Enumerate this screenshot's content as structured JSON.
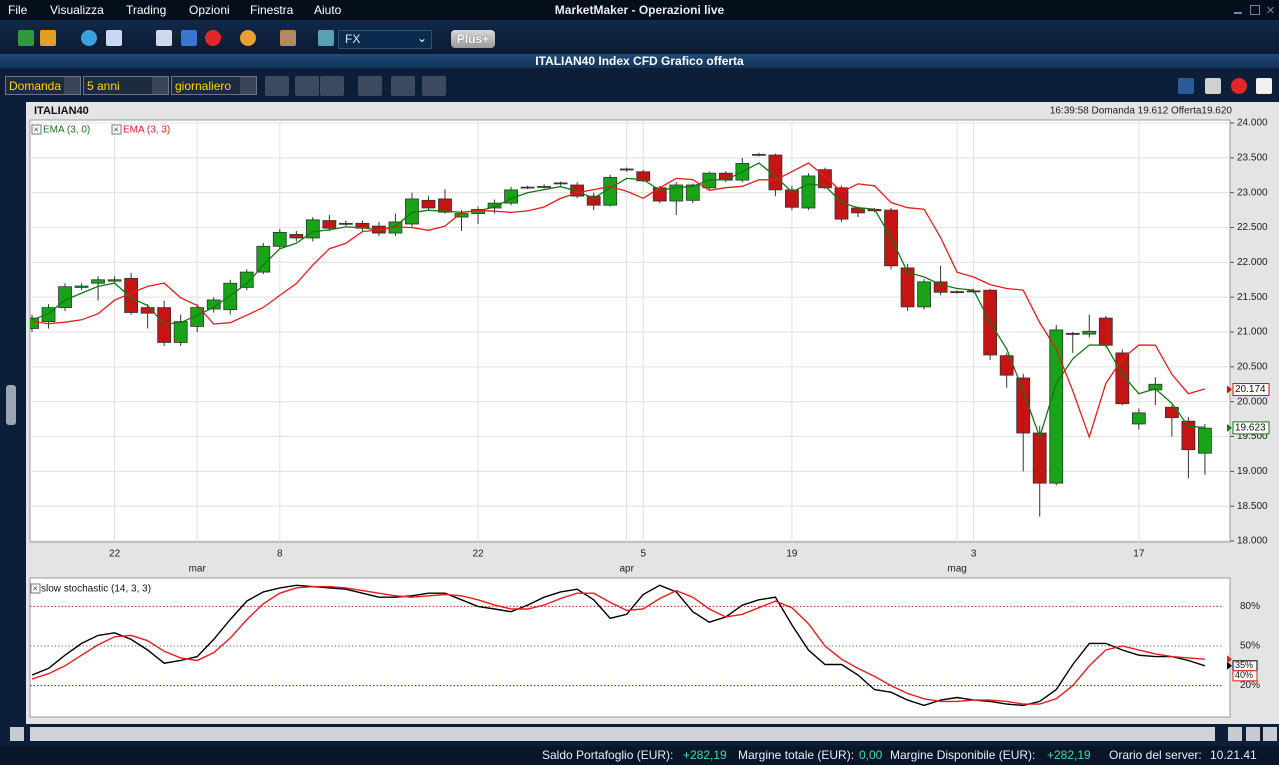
{
  "app": {
    "menu": [
      "File",
      "Visualizza",
      "Trading",
      "Opzioni",
      "Finestra",
      "Aiuto"
    ],
    "title": "MarketMaker - Operazioni live"
  },
  "toolbar": {
    "market": "FX",
    "plus": "Plus+"
  },
  "window": {
    "title": "ITALIAN40 Index CFD Grafico offerta"
  },
  "chart_toolbar": {
    "price": "Domanda",
    "period": "5 anni",
    "interval": "giornaliero"
  },
  "chart_data": [
    {
      "type": "candlestick",
      "title": "ITALIAN40",
      "subtitle": "16:39:58 Domanda 19.612 Offerta19.620",
      "categories": [
        null,
        null,
        null,
        null,
        null,
        "22",
        null,
        null,
        null,
        null,
        null,
        null,
        null,
        null,
        null,
        "8",
        null,
        null,
        null,
        null,
        null,
        null,
        null,
        null,
        null,
        null,
        null,
        "22",
        null,
        null,
        null,
        null,
        null,
        null,
        null,
        null,
        null,
        "5",
        null,
        null,
        null,
        null,
        null,
        null,
        null,
        null,
        "19",
        null,
        null,
        null,
        null,
        null,
        null,
        null,
        null,
        null,
        null,
        "3",
        null,
        null,
        null,
        null,
        null,
        null,
        null,
        null,
        null,
        "17",
        null,
        null,
        null,
        null
      ],
      "months": [
        null,
        null,
        null,
        null,
        null,
        null,
        null,
        null,
        null,
        null,
        "mar",
        null,
        null,
        null,
        null,
        null,
        null,
        null,
        null,
        null,
        null,
        null,
        null,
        null,
        null,
        null,
        null,
        null,
        null,
        null,
        null,
        null,
        null,
        null,
        null,
        null,
        "apr",
        null,
        null,
        null,
        null,
        null,
        null,
        null,
        null,
        null,
        null,
        null,
        null,
        null,
        null,
        null,
        null,
        null,
        null,
        null,
        "mag",
        null,
        null,
        null,
        null,
        null,
        null,
        null,
        null,
        null,
        null,
        null,
        null,
        null,
        null,
        null
      ],
      "open": [
        21050,
        21150,
        21350,
        21640,
        21700,
        21730,
        21770,
        21350,
        21350,
        20850,
        21080,
        21330,
        21320,
        21640,
        21860,
        22230,
        22400,
        22350,
        22600,
        22560,
        22560,
        22520,
        22420,
        22550,
        22890,
        22910,
        22650,
        22700,
        22780,
        22850,
        23070,
        23080,
        23140,
        23110,
        22950,
        22820,
        23330,
        23300,
        23070,
        22880,
        22890,
        23070,
        23280,
        23180,
        23540,
        23540,
        23040,
        22780,
        23330,
        23070,
        22780,
        22760,
        22750,
        21920,
        21360,
        21720,
        21580,
        21590,
        21600,
        20660,
        20340,
        19550,
        18830,
        20980,
        20970,
        21200,
        20700,
        19680,
        20170,
        19920,
        19720,
        19260
      ],
      "high": [
        21250,
        21400,
        21700,
        21700,
        21800,
        21800,
        21850,
        21400,
        21450,
        21250,
        21400,
        21500,
        21750,
        21900,
        22280,
        22480,
        22450,
        22650,
        22680,
        22600,
        22600,
        22580,
        22700,
        23000,
        22950,
        23050,
        22750,
        22800,
        22900,
        23080,
        23100,
        23120,
        23160,
        23150,
        23000,
        23260,
        23360,
        23330,
        23100,
        23150,
        23130,
        23300,
        23310,
        23500,
        23570,
        23560,
        23100,
        23280,
        23360,
        23100,
        22800,
        22780,
        22780,
        21980,
        21760,
        21950,
        21600,
        21620,
        21620,
        20700,
        20400,
        19650,
        21100,
        21000,
        21250,
        21230,
        20750,
        19900,
        20350,
        19950,
        19780,
        19680
      ],
      "low": [
        21000,
        21050,
        21300,
        21600,
        21450,
        21700,
        21250,
        21050,
        20800,
        20800,
        21000,
        21280,
        21250,
        21600,
        21830,
        22200,
        22300,
        22300,
        22450,
        22520,
        22450,
        22380,
        22380,
        22500,
        22750,
        22700,
        22450,
        22550,
        22700,
        22820,
        23050,
        23060,
        23100,
        22920,
        22750,
        22800,
        23300,
        23150,
        22850,
        22680,
        22850,
        23050,
        23150,
        23150,
        23520,
        22950,
        22750,
        22750,
        23050,
        22580,
        22650,
        22720,
        21900,
        21300,
        21320,
        21530,
        21550,
        21560,
        20600,
        20200,
        19000,
        18350,
        18800,
        20700,
        20920,
        20780,
        19950,
        19600,
        19950,
        19500,
        18900,
        18950
      ],
      "close": [
        21200,
        21350,
        21650,
        21660,
        21750,
        21750,
        21280,
        21270,
        20850,
        21150,
        21350,
        21460,
        21700,
        21860,
        22230,
        22430,
        22350,
        22610,
        22490,
        22550,
        22490,
        22420,
        22580,
        22910,
        22780,
        22720,
        22700,
        22760,
        22850,
        23040,
        23080,
        23090,
        23130,
        22950,
        22820,
        23220,
        23340,
        23170,
        22880,
        23110,
        23110,
        23280,
        23180,
        23420,
        23550,
        23040,
        22790,
        23240,
        23070,
        22620,
        22710,
        22740,
        21950,
        21360,
        21720,
        21570,
        21570,
        21580,
        20670,
        20380,
        19550,
        18830,
        21030,
        20970,
        21010,
        20810,
        19970,
        19840,
        20250,
        19770,
        19310,
        19620
      ],
      "up_color": "#18a318",
      "down_color": "#c41414",
      "series": [
        {
          "name": "EMA (3, 0)",
          "color": "#147814",
          "values": [
            21175,
            21263,
            21456,
            21558,
            21654,
            21702,
            21491,
            21381,
            21115,
            21133,
            21241,
            21351,
            21525,
            21693,
            21961,
            22196,
            22273,
            22441,
            22466,
            22508,
            22499,
            22460,
            22520,
            22715,
            22747,
            22734,
            22717,
            22738,
            22794,
            22917,
            22999,
            23044,
            23087,
            23019,
            22919,
            23070,
            23205,
            23187,
            23034,
            23072,
            23091,
            23185,
            23183,
            23301,
            23426,
            23233,
            23011,
            23126,
            23098,
            22859,
            22784,
            22762,
            22356,
            21858,
            21789,
            21680,
            21625,
            21602,
            21136,
            20758,
            20154,
            19492,
            20261,
            20616,
            20813,
            20811,
            20391,
            20115,
            20183,
            19976,
            19643,
            19632
          ]
        },
        {
          "name": "EMA (3, 3)",
          "color": "#e81c1c",
          "values": [
            21150,
            21120,
            21140,
            21175,
            21263,
            21456,
            21558,
            21654,
            21702,
            21491,
            21381,
            21115,
            21133,
            21241,
            21351,
            21525,
            21693,
            21961,
            22196,
            22273,
            22441,
            22466,
            22508,
            22499,
            22460,
            22520,
            22715,
            22747,
            22734,
            22717,
            22738,
            22794,
            22917,
            22999,
            23044,
            23087,
            23019,
            22919,
            23070,
            23205,
            23187,
            23034,
            23072,
            23091,
            23185,
            23183,
            23301,
            23426,
            23233,
            23011,
            23126,
            23098,
            22859,
            22784,
            22762,
            22356,
            21858,
            21789,
            21680,
            21625,
            21602,
            21136,
            20758,
            20154,
            19492,
            20261,
            20616,
            20813,
            20811,
            20391,
            20115,
            20183
          ]
        }
      ],
      "price_markers": [
        {
          "value": 20174,
          "label": "20.174",
          "color": "#c41414"
        },
        {
          "value": 19623,
          "label": "19.623",
          "color": "#147814"
        }
      ],
      "ylim": [
        18000,
        24000
      ],
      "yticks": [
        {
          "value": 18000,
          "label": "18.000"
        },
        {
          "value": 18500,
          "label": "18.500"
        },
        {
          "value": 19000,
          "label": "19.000"
        },
        {
          "value": 19500,
          "label": "19.500"
        },
        {
          "value": 20000,
          "label": "20.000"
        },
        {
          "value": 20500,
          "label": "20.500"
        },
        {
          "value": 21000,
          "label": "21.000"
        },
        {
          "value": 21500,
          "label": "21.500"
        },
        {
          "value": 22000,
          "label": "22.000"
        },
        {
          "value": 22500,
          "label": "22.500"
        },
        {
          "value": 23000,
          "label": "23.000"
        },
        {
          "value": 23500,
          "label": "23.500"
        },
        {
          "value": 24000,
          "label": "24.000"
        }
      ],
      "grid": true
    },
    {
      "type": "line",
      "title": "slow stochastic (14, 3, 3)",
      "series": [
        {
          "color": "#000000",
          "values": [
            28,
            33,
            43,
            52,
            58,
            60,
            55,
            47,
            37,
            39,
            42,
            55,
            70,
            84,
            91,
            94,
            96,
            95,
            94,
            93,
            90,
            87,
            87,
            88,
            90,
            90,
            85,
            80,
            78,
            76,
            81,
            87,
            91,
            93,
            85,
            71,
            74,
            89,
            96,
            91,
            76,
            68,
            72,
            81,
            85,
            87,
            66,
            47,
            36,
            36,
            28,
            17,
            15,
            9,
            5,
            9,
            11,
            9,
            8,
            6,
            5,
            8,
            17,
            36,
            52,
            52,
            47,
            43,
            42,
            42,
            39,
            35
          ]
        },
        {
          "color": "#e81c1c",
          "values": [
            25,
            29,
            35,
            43,
            51,
            57,
            58,
            54,
            46,
            41,
            39,
            45,
            56,
            70,
            82,
            90,
            94,
            95,
            95,
            94,
            92,
            90,
            88,
            87,
            88,
            89,
            88,
            85,
            81,
            78,
            78,
            81,
            86,
            90,
            90,
            83,
            77,
            78,
            86,
            92,
            87,
            78,
            72,
            74,
            79,
            84,
            79,
            67,
            50,
            40,
            33,
            27,
            20,
            14,
            10,
            8,
            8,
            9,
            9,
            8,
            6,
            6,
            10,
            20,
            35,
            47,
            50,
            47,
            44,
            42,
            41,
            40
          ]
        }
      ],
      "markers": [
        {
          "value": 35,
          "label": "35%",
          "color": "#000000"
        },
        {
          "value": 40,
          "label": "40%",
          "color": "#e81c1c"
        }
      ],
      "ylim": [
        0,
        100
      ],
      "yticks": [
        {
          "value": 20,
          "label": "20%"
        },
        {
          "value": 50,
          "label": "50%"
        },
        {
          "value": 80,
          "label": "80%"
        }
      ],
      "grid_colors": [
        "#1c2a8c",
        "#777777",
        "#c81e1e"
      ]
    }
  ],
  "status_bar": {
    "items": [
      {
        "label": "Saldo Portafoglio (EUR):",
        "value": "+282,19"
      },
      {
        "label": "Margine totale (EUR):",
        "value": "0,00"
      },
      {
        "label": "Margine Disponibile (EUR):",
        "value": "+282,19"
      }
    ],
    "server_time_label": "Orario del server:",
    "server_time": "10.21.41"
  }
}
